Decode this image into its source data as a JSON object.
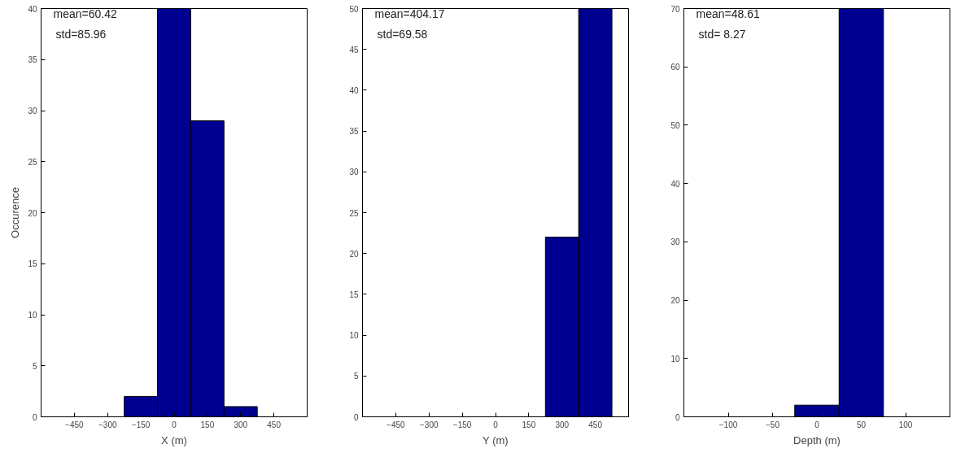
{
  "chart_data": [
    {
      "type": "histogram",
      "bins": [
        -225,
        -75,
        75,
        225,
        375
      ],
      "values": [
        2,
        40,
        29,
        1
      ],
      "color": "#000090",
      "xlim": [
        -600,
        600
      ],
      "xticks": [
        -450,
        -300,
        -150,
        0,
        150,
        300,
        450
      ],
      "ylim": [
        0,
        40
      ],
      "yticks": [
        0,
        5,
        10,
        15,
        20,
        25,
        30,
        35,
        40
      ],
      "xlabel": "X (m)",
      "ylabel": "Occurence",
      "annotations": [
        "mean=60.42",
        "std=85.96"
      ]
    },
    {
      "type": "histogram",
      "bins": [
        225,
        375,
        525
      ],
      "values": [
        22,
        50
      ],
      "color": "#000090",
      "xlim": [
        -600,
        600
      ],
      "xticks": [
        -450,
        -300,
        -150,
        0,
        150,
        300,
        450
      ],
      "ylim": [
        0,
        50
      ],
      "yticks": [
        0,
        5,
        10,
        15,
        20,
        25,
        30,
        35,
        40,
        45,
        50
      ],
      "xlabel": "Y (m)",
      "annotations": [
        "mean=404.17",
        "std=69.58"
      ]
    },
    {
      "type": "histogram",
      "bins": [
        -25,
        25,
        75
      ],
      "values": [
        2,
        70
      ],
      "color": "#000090",
      "xlim": [
        -150,
        150
      ],
      "xticks": [
        -100,
        -50,
        0,
        50,
        100
      ],
      "ylim": [
        0,
        70
      ],
      "yticks": [
        0,
        10,
        20,
        30,
        40,
        50,
        60,
        70
      ],
      "xlabel": "Depth (m)",
      "annotations": [
        "mean=48.61",
        "std= 8.27"
      ]
    }
  ]
}
